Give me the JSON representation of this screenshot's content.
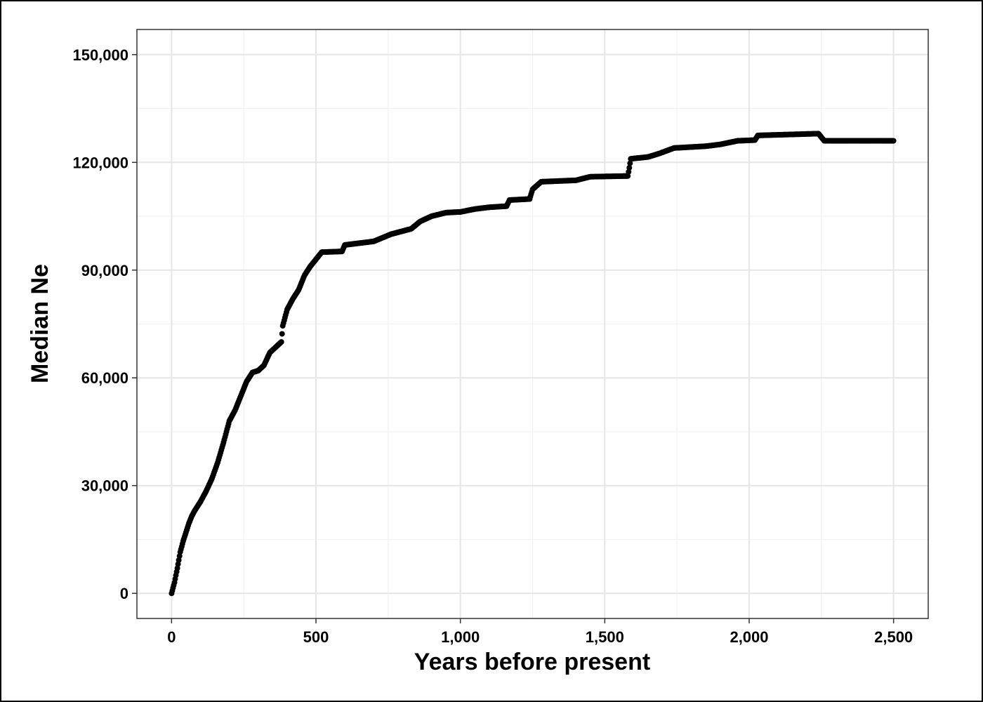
{
  "chart_data": {
    "type": "scatter",
    "title": "",
    "xlabel": "Years before present",
    "ylabel": "Median Ne",
    "xlim": [
      -120,
      2620
    ],
    "ylim": [
      -7000,
      157000
    ],
    "x_ticks": [
      0,
      500,
      1000,
      1500,
      2000,
      2500
    ],
    "x_tick_labels": [
      "0",
      "500",
      "1,000",
      "1,500",
      "2,000",
      "2,500"
    ],
    "y_ticks": [
      0,
      30000,
      60000,
      90000,
      120000,
      150000
    ],
    "y_tick_labels": [
      "0",
      "30,000",
      "60,000",
      "90,000",
      "120,000",
      "150,000"
    ],
    "grid": true,
    "legend": "none",
    "point_color": "#000000",
    "curve": [
      [
        0,
        0
      ],
      [
        10,
        3000
      ],
      [
        20,
        7000
      ],
      [
        30,
        11500
      ],
      [
        40,
        14500
      ],
      [
        50,
        17000
      ],
      [
        60,
        19500
      ],
      [
        70,
        21500
      ],
      [
        80,
        23000
      ],
      [
        100,
        25500
      ],
      [
        120,
        28500
      ],
      [
        140,
        32000
      ],
      [
        160,
        36500
      ],
      [
        180,
        42000
      ],
      [
        200,
        48000
      ],
      [
        220,
        51000
      ],
      [
        240,
        55000
      ],
      [
        260,
        59000
      ],
      [
        280,
        61500
      ],
      [
        300,
        62000
      ],
      [
        320,
        63500
      ],
      [
        340,
        67000
      ],
      [
        360,
        68500
      ],
      [
        380,
        70000
      ],
      [
        385,
        74500
      ],
      [
        400,
        79000
      ],
      [
        420,
        82000
      ],
      [
        440,
        84500
      ],
      [
        460,
        88500
      ],
      [
        480,
        91000
      ],
      [
        500,
        93000
      ],
      [
        520,
        95000
      ],
      [
        590,
        95200
      ],
      [
        600,
        97000
      ],
      [
        700,
        98000
      ],
      [
        760,
        100000
      ],
      [
        830,
        101500
      ],
      [
        860,
        103500
      ],
      [
        900,
        105000
      ],
      [
        950,
        106000
      ],
      [
        1000,
        106200
      ],
      [
        1050,
        107000
      ],
      [
        1100,
        107500
      ],
      [
        1160,
        107800
      ],
      [
        1170,
        109500
      ],
      [
        1240,
        109800
      ],
      [
        1250,
        112500
      ],
      [
        1280,
        114600
      ],
      [
        1400,
        115000
      ],
      [
        1450,
        116000
      ],
      [
        1580,
        116200
      ],
      [
        1585,
        118500
      ],
      [
        1590,
        121000
      ],
      [
        1650,
        121500
      ],
      [
        1690,
        122500
      ],
      [
        1740,
        124000
      ],
      [
        1850,
        124500
      ],
      [
        1900,
        125000
      ],
      [
        1960,
        126000
      ],
      [
        2020,
        126200
      ],
      [
        2030,
        127500
      ],
      [
        2240,
        128000
      ],
      [
        2250,
        127000
      ],
      [
        2260,
        126000
      ],
      [
        2500,
        126000
      ]
    ]
  }
}
